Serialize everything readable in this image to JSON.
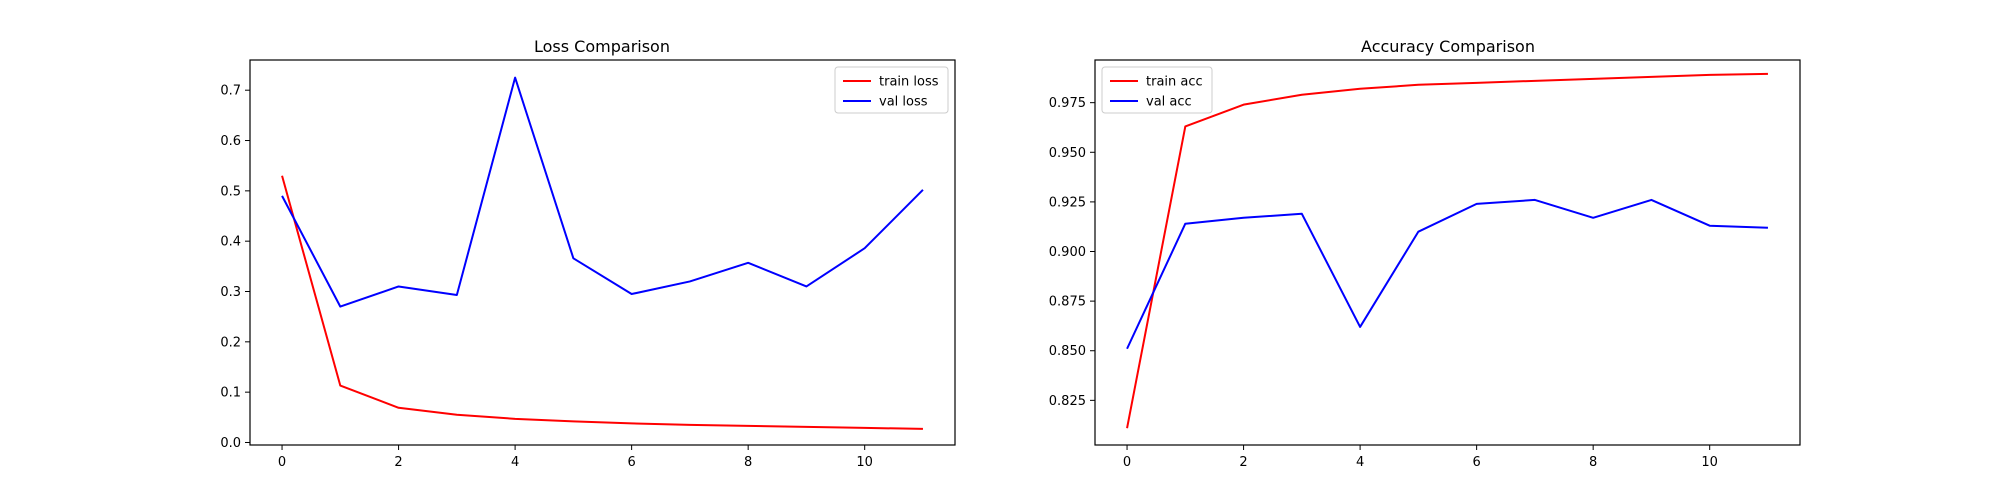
{
  "chart_data": [
    {
      "type": "line",
      "title": "Loss Comparison",
      "xlabel": "",
      "ylabel": "",
      "xlim": [
        -0.55,
        11.55
      ],
      "ylim": [
        -0.005,
        0.76
      ],
      "x_ticks": [
        0,
        2,
        4,
        6,
        8,
        10
      ],
      "y_ticks": [
        0.0,
        0.1,
        0.2,
        0.3,
        0.4,
        0.5,
        0.6,
        0.7
      ],
      "y_tick_format": "1",
      "grid": false,
      "legend_position": "upper right",
      "x": [
        0,
        1,
        2,
        3,
        4,
        5,
        6,
        7,
        8,
        9,
        10,
        11
      ],
      "series": [
        {
          "name": "train loss",
          "color": "#ff0000",
          "values": [
            0.53,
            0.113,
            0.069,
            0.055,
            0.047,
            0.042,
            0.038,
            0.035,
            0.033,
            0.031,
            0.029,
            0.027
          ]
        },
        {
          "name": "val loss",
          "color": "#0000ff",
          "values": [
            0.49,
            0.27,
            0.31,
            0.293,
            0.725,
            0.366,
            0.295,
            0.32,
            0.357,
            0.31,
            0.386,
            0.502
          ]
        }
      ]
    },
    {
      "type": "line",
      "title": "Accuracy Comparison",
      "xlabel": "",
      "ylabel": "",
      "xlim": [
        -0.55,
        11.55
      ],
      "ylim": [
        0.8025,
        0.9965
      ],
      "x_ticks": [
        0,
        2,
        4,
        6,
        8,
        10
      ],
      "y_ticks": [
        0.825,
        0.85,
        0.875,
        0.9,
        0.925,
        0.95,
        0.975
      ],
      "y_tick_format": "3",
      "grid": false,
      "legend_position": "upper left",
      "x": [
        0,
        1,
        2,
        3,
        4,
        5,
        6,
        7,
        8,
        9,
        10,
        11
      ],
      "series": [
        {
          "name": "train acc",
          "color": "#ff0000",
          "values": [
            0.811,
            0.963,
            0.974,
            0.979,
            0.982,
            0.984,
            0.985,
            0.986,
            0.987,
            0.988,
            0.989,
            0.9895
          ]
        },
        {
          "name": "val acc",
          "color": "#0000ff",
          "values": [
            0.851,
            0.914,
            0.917,
            0.919,
            0.862,
            0.91,
            0.924,
            0.926,
            0.917,
            0.926,
            0.913,
            0.912
          ]
        }
      ]
    }
  ]
}
